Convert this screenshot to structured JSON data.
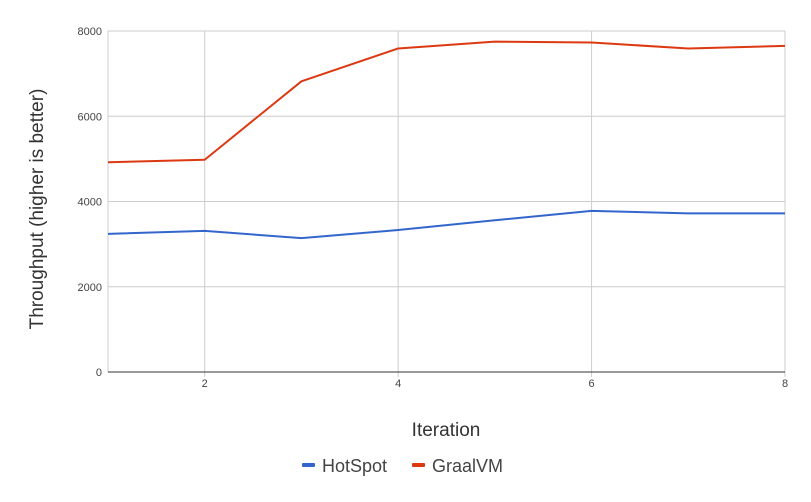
{
  "chart_data": {
    "type": "line",
    "title": "",
    "xlabel": "Iteration",
    "ylabel": "Throughput (higher is better)",
    "x": [
      1,
      2,
      3,
      4,
      5,
      6,
      7,
      8
    ],
    "xlim": [
      1,
      8
    ],
    "ylim": [
      0,
      8000
    ],
    "x_ticks": [
      "2",
      "4",
      "6",
      "8"
    ],
    "y_ticks": [
      "0",
      "2000",
      "4000",
      "6000",
      "8000"
    ],
    "grid": true,
    "legend_position": "bottom",
    "series": [
      {
        "name": "HotSpot",
        "color": "#3366cc",
        "values": [
          3240,
          3310,
          3140,
          3330,
          3560,
          3780,
          3720,
          3720
        ]
      },
      {
        "name": "GraalVM",
        "color": "#dc3912",
        "values": [
          4920,
          4980,
          6820,
          7590,
          7750,
          7730,
          7590,
          7650
        ]
      }
    ]
  }
}
